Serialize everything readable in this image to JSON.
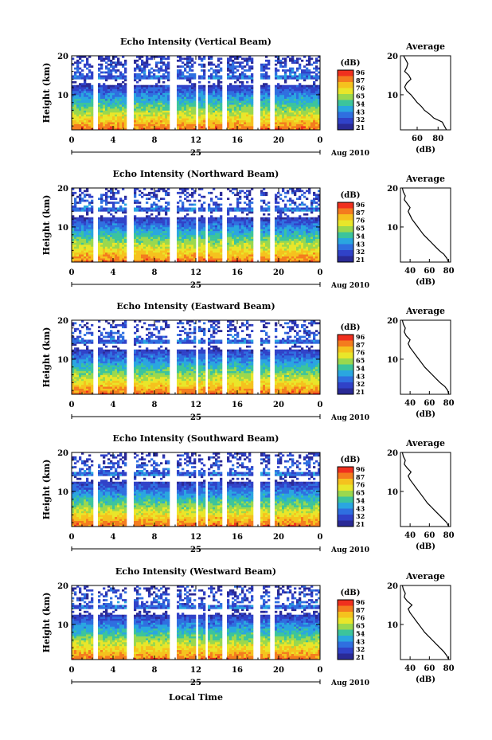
{
  "figure": {
    "xlabel": "Local Time",
    "date_label": "Aug 2010",
    "day_label": "25",
    "cbar_unit": "(dB)",
    "cbar_ticks": [
      "96",
      "87",
      "76",
      "65",
      "54",
      "43",
      "32",
      "21"
    ],
    "cbar_colors": [
      "#f0301e",
      "#f47c1e",
      "#f5c21e",
      "#e9e62a",
      "#9ad84e",
      "#3cc49c",
      "#2aa6e0",
      "#2f6fe0",
      "#3042c8",
      "#2a2a96"
    ]
  },
  "chart_data": [
    {
      "type": "heatmap",
      "title": "Echo Intensity (Vertical Beam)",
      "ylabel": "Height (km)",
      "xlim": [
        0,
        24
      ],
      "ylim": [
        1,
        20
      ],
      "x_ticks": [
        "0",
        "4",
        "8",
        "12",
        "16",
        "20",
        "0"
      ],
      "y_ticks": [
        "20",
        "10"
      ],
      "gaps_hours": [
        [
          2.1,
          2.6
        ],
        [
          5.4,
          5.9
        ],
        [
          9.4,
          10.1
        ],
        [
          11.9,
          12.3
        ],
        [
          12.9,
          13.2
        ],
        [
          14.5,
          15.1
        ],
        [
          17.6,
          18.2
        ],
        [
          19.1,
          19.7
        ]
      ],
      "profile": {
        "title": "Average",
        "xlabel": "(dB)",
        "x_ticks": [
          "60",
          "80"
        ],
        "xlim": [
          44,
          92
        ],
        "height_km": [
          1,
          2,
          3,
          4,
          5,
          6,
          7,
          8,
          9,
          10,
          11,
          12,
          13,
          14,
          15,
          16,
          17,
          18,
          19,
          20
        ],
        "mean_db": [
          88,
          86,
          84,
          76,
          72,
          67,
          64,
          60,
          57,
          54,
          50,
          48,
          50,
          54,
          52,
          48,
          50,
          51,
          49,
          47
        ]
      }
    },
    {
      "type": "heatmap",
      "title": "Echo Intensity (Northward Beam)",
      "ylabel": "Height (km)",
      "xlim": [
        0,
        24
      ],
      "ylim": [
        1,
        20
      ],
      "x_ticks": [
        "0",
        "4",
        "8",
        "12",
        "16",
        "20",
        "0"
      ],
      "y_ticks": [
        "20",
        "10"
      ],
      "gaps_hours": [
        [
          2.1,
          2.6
        ],
        [
          5.4,
          5.9
        ],
        [
          9.4,
          10.1
        ],
        [
          11.9,
          12.3
        ],
        [
          12.9,
          13.2
        ],
        [
          14.5,
          15.1
        ],
        [
          17.6,
          18.2
        ],
        [
          19.1,
          19.7
        ]
      ],
      "profile": {
        "title": "Average",
        "xlabel": "(dB)",
        "x_ticks": [
          "40",
          "60",
          "80"
        ],
        "xlim": [
          30,
          82
        ],
        "height_km": [
          1,
          2,
          3,
          4,
          5,
          6,
          7,
          8,
          9,
          10,
          11,
          12,
          13,
          14,
          15,
          16,
          17,
          18,
          19,
          20
        ],
        "mean_db": [
          80,
          78,
          75,
          70,
          66,
          62,
          58,
          54,
          51,
          48,
          45,
          42,
          40,
          38,
          40,
          37,
          34,
          35,
          33,
          32
        ]
      }
    },
    {
      "type": "heatmap",
      "title": "Echo Intensity (Eastward Beam)",
      "ylabel": "Height (km)",
      "xlim": [
        0,
        24
      ],
      "ylim": [
        1,
        20
      ],
      "x_ticks": [
        "0",
        "4",
        "8",
        "12",
        "16",
        "20",
        "0"
      ],
      "y_ticks": [
        "20",
        "10"
      ],
      "gaps_hours": [
        [
          2.1,
          2.6
        ],
        [
          5.4,
          5.9
        ],
        [
          9.4,
          10.1
        ],
        [
          11.9,
          12.3
        ],
        [
          12.9,
          13.2
        ],
        [
          14.5,
          15.1
        ],
        [
          17.6,
          18.2
        ],
        [
          19.1,
          19.7
        ]
      ],
      "profile": {
        "title": "Average",
        "xlabel": "(dB)",
        "x_ticks": [
          "40",
          "60",
          "80"
        ],
        "xlim": [
          30,
          82
        ],
        "height_km": [
          1,
          2,
          3,
          4,
          5,
          6,
          7,
          8,
          9,
          10,
          11,
          12,
          13,
          14,
          15,
          16,
          17,
          18,
          19,
          20
        ],
        "mean_db": [
          80,
          79,
          76,
          71,
          67,
          63,
          59,
          55,
          52,
          49,
          46,
          43,
          40,
          38,
          40,
          36,
          34,
          35,
          33,
          32
        ]
      }
    },
    {
      "type": "heatmap",
      "title": "Echo Intensity (Southward Beam)",
      "ylabel": "Height (km)",
      "xlim": [
        0,
        24
      ],
      "ylim": [
        1,
        20
      ],
      "x_ticks": [
        "0",
        "4",
        "8",
        "12",
        "16",
        "20",
        "0"
      ],
      "y_ticks": [
        "20",
        "10"
      ],
      "gaps_hours": [
        [
          2.1,
          2.6
        ],
        [
          5.4,
          5.9
        ],
        [
          9.4,
          10.1
        ],
        [
          11.9,
          12.3
        ],
        [
          12.9,
          13.2
        ],
        [
          14.5,
          15.1
        ],
        [
          17.6,
          18.2
        ],
        [
          19.1,
          19.7
        ]
      ],
      "profile": {
        "title": "Average",
        "xlabel": "(dB)",
        "x_ticks": [
          "40",
          "60",
          "80"
        ],
        "xlim": [
          30,
          82
        ],
        "height_km": [
          1,
          2,
          3,
          4,
          5,
          6,
          7,
          8,
          9,
          10,
          11,
          12,
          13,
          14,
          15,
          16,
          17,
          18,
          19,
          20
        ],
        "mean_db": [
          80,
          78,
          74,
          70,
          66,
          62,
          58,
          55,
          52,
          49,
          46,
          43,
          40,
          38,
          41,
          37,
          34,
          35,
          33,
          32
        ]
      }
    },
    {
      "type": "heatmap",
      "title": "Echo Intensity (Westward Beam)",
      "ylabel": "Height (km)",
      "xlim": [
        0,
        24
      ],
      "ylim": [
        1,
        20
      ],
      "x_ticks": [
        "0",
        "4",
        "8",
        "12",
        "16",
        "20",
        "0"
      ],
      "y_ticks": [
        "20",
        "10"
      ],
      "gaps_hours": [
        [
          2.1,
          2.6
        ],
        [
          5.4,
          5.9
        ],
        [
          9.4,
          10.1
        ],
        [
          11.9,
          12.3
        ],
        [
          12.9,
          13.2
        ],
        [
          14.5,
          15.1
        ],
        [
          17.6,
          18.2
        ],
        [
          19.1,
          19.7
        ]
      ],
      "profile": {
        "title": "Average",
        "xlabel": "(dB)",
        "x_ticks": [
          "40",
          "60",
          "80"
        ],
        "xlim": [
          30,
          82
        ],
        "height_km": [
          1,
          2,
          3,
          4,
          5,
          6,
          7,
          8,
          9,
          10,
          11,
          12,
          13,
          14,
          15,
          16,
          17,
          18,
          19,
          20
        ],
        "mean_db": [
          80,
          78,
          75,
          71,
          67,
          63,
          59,
          55,
          52,
          49,
          46,
          43,
          40,
          38,
          42,
          37,
          34,
          35,
          33,
          32
        ]
      }
    }
  ]
}
